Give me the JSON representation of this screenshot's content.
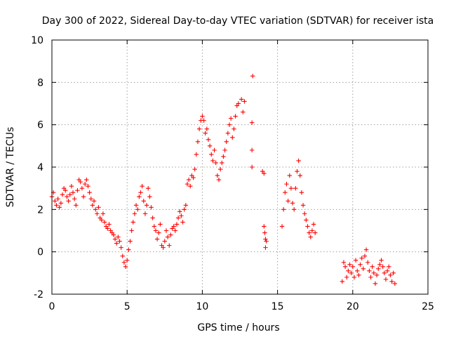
{
  "chart_data": {
    "type": "scatter",
    "title": "Day 300 of 2022, Sidereal Day-to-day VTEC variation (SDTVAR) for receiver ista",
    "xlabel": "GPS time / hours",
    "ylabel": "SDTVAR / TECUs",
    "xlim": [
      0,
      25
    ],
    "ylim": [
      -2,
      10
    ],
    "x_ticks": [
      0,
      5,
      10,
      15,
      20,
      25
    ],
    "x_tick_labels": [
      "0",
      "5",
      "10",
      "15",
      "20",
      "25"
    ],
    "y_ticks": [
      -2,
      0,
      2,
      4,
      6,
      8,
      10
    ],
    "y_tick_labels": [
      "-2",
      "0",
      "2",
      "4",
      "6",
      "8",
      "10"
    ],
    "grid": true,
    "marker": "+",
    "color": "#ff0000",
    "series": [
      {
        "name": "SDTVAR",
        "points": [
          [
            0.0,
            2.6
          ],
          [
            0.1,
            2.8
          ],
          [
            0.2,
            2.4
          ],
          [
            0.3,
            2.2
          ],
          [
            0.4,
            2.5
          ],
          [
            0.5,
            2.1
          ],
          [
            0.6,
            2.3
          ],
          [
            0.7,
            2.7
          ],
          [
            0.8,
            3.0
          ],
          [
            0.9,
            2.9
          ],
          [
            1.0,
            2.6
          ],
          [
            1.1,
            2.4
          ],
          [
            1.2,
            2.7
          ],
          [
            1.3,
            3.1
          ],
          [
            1.4,
            2.8
          ],
          [
            1.5,
            2.5
          ],
          [
            1.6,
            2.2
          ],
          [
            1.7,
            2.9
          ],
          [
            1.8,
            3.4
          ],
          [
            1.9,
            3.3
          ],
          [
            2.0,
            3.0
          ],
          [
            2.1,
            2.6
          ],
          [
            2.2,
            3.2
          ],
          [
            2.3,
            3.4
          ],
          [
            2.4,
            3.1
          ],
          [
            2.5,
            2.8
          ],
          [
            2.6,
            2.5
          ],
          [
            2.7,
            2.2
          ],
          [
            2.8,
            2.4
          ],
          [
            2.9,
            2.0
          ],
          [
            3.0,
            1.8
          ],
          [
            3.1,
            2.1
          ],
          [
            3.2,
            1.6
          ],
          [
            3.3,
            1.5
          ],
          [
            3.4,
            1.8
          ],
          [
            3.5,
            1.4
          ],
          [
            3.6,
            1.2
          ],
          [
            3.7,
            1.1
          ],
          [
            3.8,
            1.3
          ],
          [
            3.9,
            1.0
          ],
          [
            4.0,
            0.9
          ],
          [
            4.1,
            0.8
          ],
          [
            4.2,
            0.6
          ],
          [
            4.3,
            0.4
          ],
          [
            4.4,
            0.7
          ],
          [
            4.5,
            0.5
          ],
          [
            4.6,
            0.2
          ],
          [
            4.7,
            -0.2
          ],
          [
            4.8,
            -0.5
          ],
          [
            4.9,
            -0.7
          ],
          [
            5.0,
            -0.4
          ],
          [
            5.1,
            0.1
          ],
          [
            5.2,
            0.5
          ],
          [
            5.3,
            1.0
          ],
          [
            5.4,
            1.4
          ],
          [
            5.5,
            1.8
          ],
          [
            5.6,
            2.2
          ],
          [
            5.7,
            2.0
          ],
          [
            5.8,
            2.6
          ],
          [
            5.9,
            2.8
          ],
          [
            6.0,
            3.1
          ],
          [
            6.1,
            2.4
          ],
          [
            6.2,
            1.8
          ],
          [
            6.3,
            2.2
          ],
          [
            6.4,
            3.0
          ],
          [
            6.5,
            2.6
          ],
          [
            6.6,
            2.1
          ],
          [
            6.7,
            1.6
          ],
          [
            6.8,
            1.2
          ],
          [
            6.9,
            1.0
          ],
          [
            7.0,
            0.6
          ],
          [
            7.1,
            0.9
          ],
          [
            7.2,
            1.3
          ],
          [
            7.3,
            0.3
          ],
          [
            7.4,
            0.2
          ],
          [
            7.5,
            0.5
          ],
          [
            7.6,
            1.0
          ],
          [
            7.7,
            0.7
          ],
          [
            7.8,
            0.3
          ],
          [
            7.9,
            0.8
          ],
          [
            8.0,
            1.1
          ],
          [
            8.1,
            1.2
          ],
          [
            8.2,
            1.0
          ],
          [
            8.3,
            1.3
          ],
          [
            8.4,
            1.6
          ],
          [
            8.5,
            1.9
          ],
          [
            8.6,
            1.7
          ],
          [
            8.7,
            1.4
          ],
          [
            8.8,
            2.0
          ],
          [
            8.9,
            2.2
          ],
          [
            9.0,
            3.2
          ],
          [
            9.1,
            3.4
          ],
          [
            9.2,
            3.1
          ],
          [
            9.3,
            3.6
          ],
          [
            9.4,
            3.5
          ],
          [
            9.5,
            3.9
          ],
          [
            9.6,
            4.6
          ],
          [
            9.7,
            5.2
          ],
          [
            9.8,
            5.8
          ],
          [
            9.9,
            6.2
          ],
          [
            10.0,
            6.4
          ],
          [
            10.1,
            6.2
          ],
          [
            10.2,
            5.6
          ],
          [
            10.3,
            5.8
          ],
          [
            10.4,
            5.3
          ],
          [
            10.5,
            5.0
          ],
          [
            10.6,
            4.6
          ],
          [
            10.7,
            4.3
          ],
          [
            10.8,
            4.8
          ],
          [
            10.9,
            4.2
          ],
          [
            11.0,
            3.6
          ],
          [
            11.1,
            3.4
          ],
          [
            11.2,
            3.9
          ],
          [
            11.3,
            4.2
          ],
          [
            11.4,
            4.5
          ],
          [
            11.5,
            4.8
          ],
          [
            11.6,
            5.2
          ],
          [
            11.7,
            5.6
          ],
          [
            11.8,
            6.0
          ],
          [
            11.9,
            6.3
          ],
          [
            12.0,
            5.4
          ],
          [
            12.1,
            5.8
          ],
          [
            12.2,
            6.4
          ],
          [
            12.3,
            6.9
          ],
          [
            12.4,
            7.0
          ],
          [
            12.6,
            7.2
          ],
          [
            12.7,
            6.6
          ],
          [
            12.8,
            7.1
          ],
          [
            13.3,
            6.1
          ],
          [
            13.3,
            4.8
          ],
          [
            13.3,
            4.0
          ],
          [
            13.35,
            8.3
          ],
          [
            14.0,
            3.8
          ],
          [
            14.1,
            3.7
          ],
          [
            14.1,
            1.2
          ],
          [
            14.15,
            0.9
          ],
          [
            14.2,
            0.6
          ],
          [
            14.2,
            0.2
          ],
          [
            14.25,
            0.5
          ],
          [
            15.3,
            1.2
          ],
          [
            15.4,
            2.0
          ],
          [
            15.5,
            2.8
          ],
          [
            15.6,
            3.2
          ],
          [
            15.7,
            2.4
          ],
          [
            15.8,
            3.6
          ],
          [
            15.9,
            3.0
          ],
          [
            16.0,
            2.3
          ],
          [
            16.1,
            2.0
          ],
          [
            16.2,
            3.0
          ],
          [
            16.3,
            3.8
          ],
          [
            16.4,
            4.3
          ],
          [
            16.5,
            3.6
          ],
          [
            16.6,
            2.8
          ],
          [
            16.7,
            2.2
          ],
          [
            16.8,
            1.8
          ],
          [
            16.9,
            1.5
          ],
          [
            17.0,
            1.2
          ],
          [
            17.1,
            0.9
          ],
          [
            17.2,
            0.7
          ],
          [
            17.3,
            1.0
          ],
          [
            17.4,
            1.3
          ],
          [
            17.5,
            0.9
          ],
          [
            19.3,
            -1.4
          ],
          [
            19.4,
            -0.5
          ],
          [
            19.5,
            -0.7
          ],
          [
            19.6,
            -1.2
          ],
          [
            19.7,
            -0.9
          ],
          [
            19.8,
            -0.6
          ],
          [
            19.9,
            -1.0
          ],
          [
            20.0,
            -0.7
          ],
          [
            20.1,
            -1.2
          ],
          [
            20.2,
            -0.4
          ],
          [
            20.3,
            -0.9
          ],
          [
            20.4,
            -1.1
          ],
          [
            20.5,
            -0.6
          ],
          [
            20.6,
            -0.3
          ],
          [
            20.7,
            -0.8
          ],
          [
            20.8,
            -0.2
          ],
          [
            20.9,
            0.1
          ],
          [
            21.0,
            -0.5
          ],
          [
            21.1,
            -0.9
          ],
          [
            21.2,
            -1.2
          ],
          [
            21.3,
            -0.7
          ],
          [
            21.4,
            -1.0
          ],
          [
            21.5,
            -1.5
          ],
          [
            21.6,
            -1.1
          ],
          [
            21.7,
            -0.8
          ],
          [
            21.8,
            -0.6
          ],
          [
            21.9,
            -0.4
          ],
          [
            22.0,
            -0.7
          ],
          [
            22.1,
            -1.0
          ],
          [
            22.2,
            -1.3
          ],
          [
            22.3,
            -0.9
          ],
          [
            22.4,
            -0.7
          ],
          [
            22.5,
            -1.1
          ],
          [
            22.6,
            -1.4
          ],
          [
            22.7,
            -1.0
          ],
          [
            22.8,
            -1.5
          ]
        ]
      }
    ]
  }
}
